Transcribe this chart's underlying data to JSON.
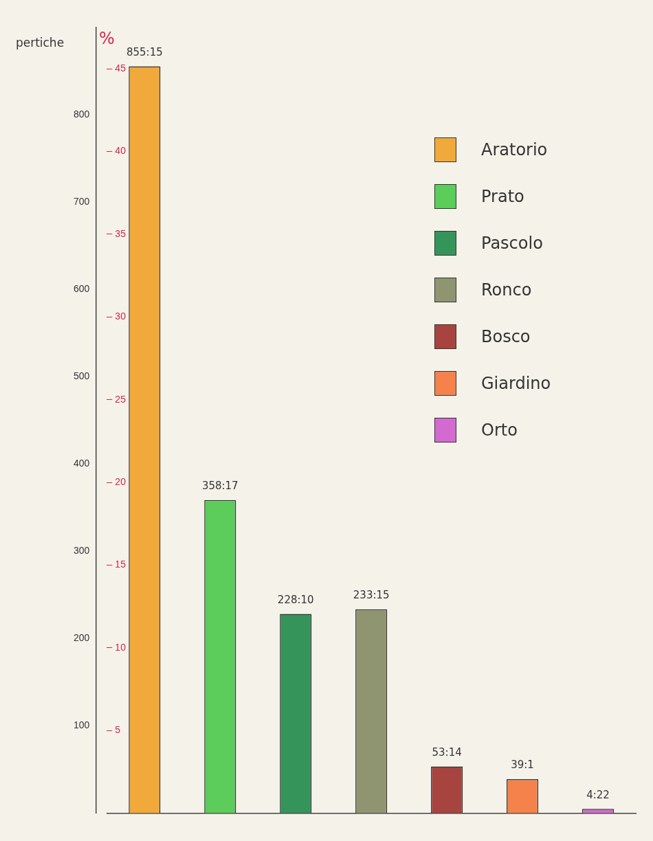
{
  "chart_data": {
    "type": "bar",
    "ylabel": "pertiche",
    "y2label": "%",
    "categories": [
      null,
      null,
      null,
      null,
      null,
      null,
      null
    ],
    "series": [
      {
        "name": "Aratorio",
        "color": "#f0a93a",
        "values": [
          855.6,
          null,
          null,
          null,
          null,
          null,
          null
        ]
      },
      {
        "name": "Prato",
        "color": "#5ccc5a",
        "values": [
          null,
          358.7,
          null,
          null,
          null,
          null,
          null
        ]
      },
      {
        "name": "Pascolo",
        "color": "#35945a",
        "values": [
          null,
          null,
          228.4,
          null,
          null,
          null,
          null
        ]
      },
      {
        "name": "Ronco",
        "color": "#8f9570",
        "values": [
          null,
          null,
          null,
          233.6,
          null,
          null,
          null
        ]
      },
      {
        "name": "Bosco",
        "color": "#a8443f",
        "values": [
          null,
          null,
          null,
          null,
          53.6,
          null,
          null
        ]
      },
      {
        "name": "Giardino",
        "color": "#f5824a",
        "values": [
          null,
          null,
          null,
          null,
          null,
          39.0,
          null
        ]
      },
      {
        "name": "Orto",
        "color": "#d26ad0",
        "values": [
          null,
          null,
          null,
          null,
          null,
          null,
          4.9
        ]
      }
    ],
    "value_labels": [
      "855:15",
      "358:17",
      "228:10",
      "233:15",
      "53:14",
      "39:1",
      "4:22"
    ],
    "ylim": [
      0,
      900
    ],
    "yticks": [
      100,
      200,
      300,
      400,
      500,
      600,
      700,
      800
    ],
    "y2lim": [
      0,
      47.5
    ],
    "y2ticks": [
      5,
      10,
      15,
      20,
      25,
      30,
      35,
      40,
      45
    ],
    "legend": "top right"
  }
}
